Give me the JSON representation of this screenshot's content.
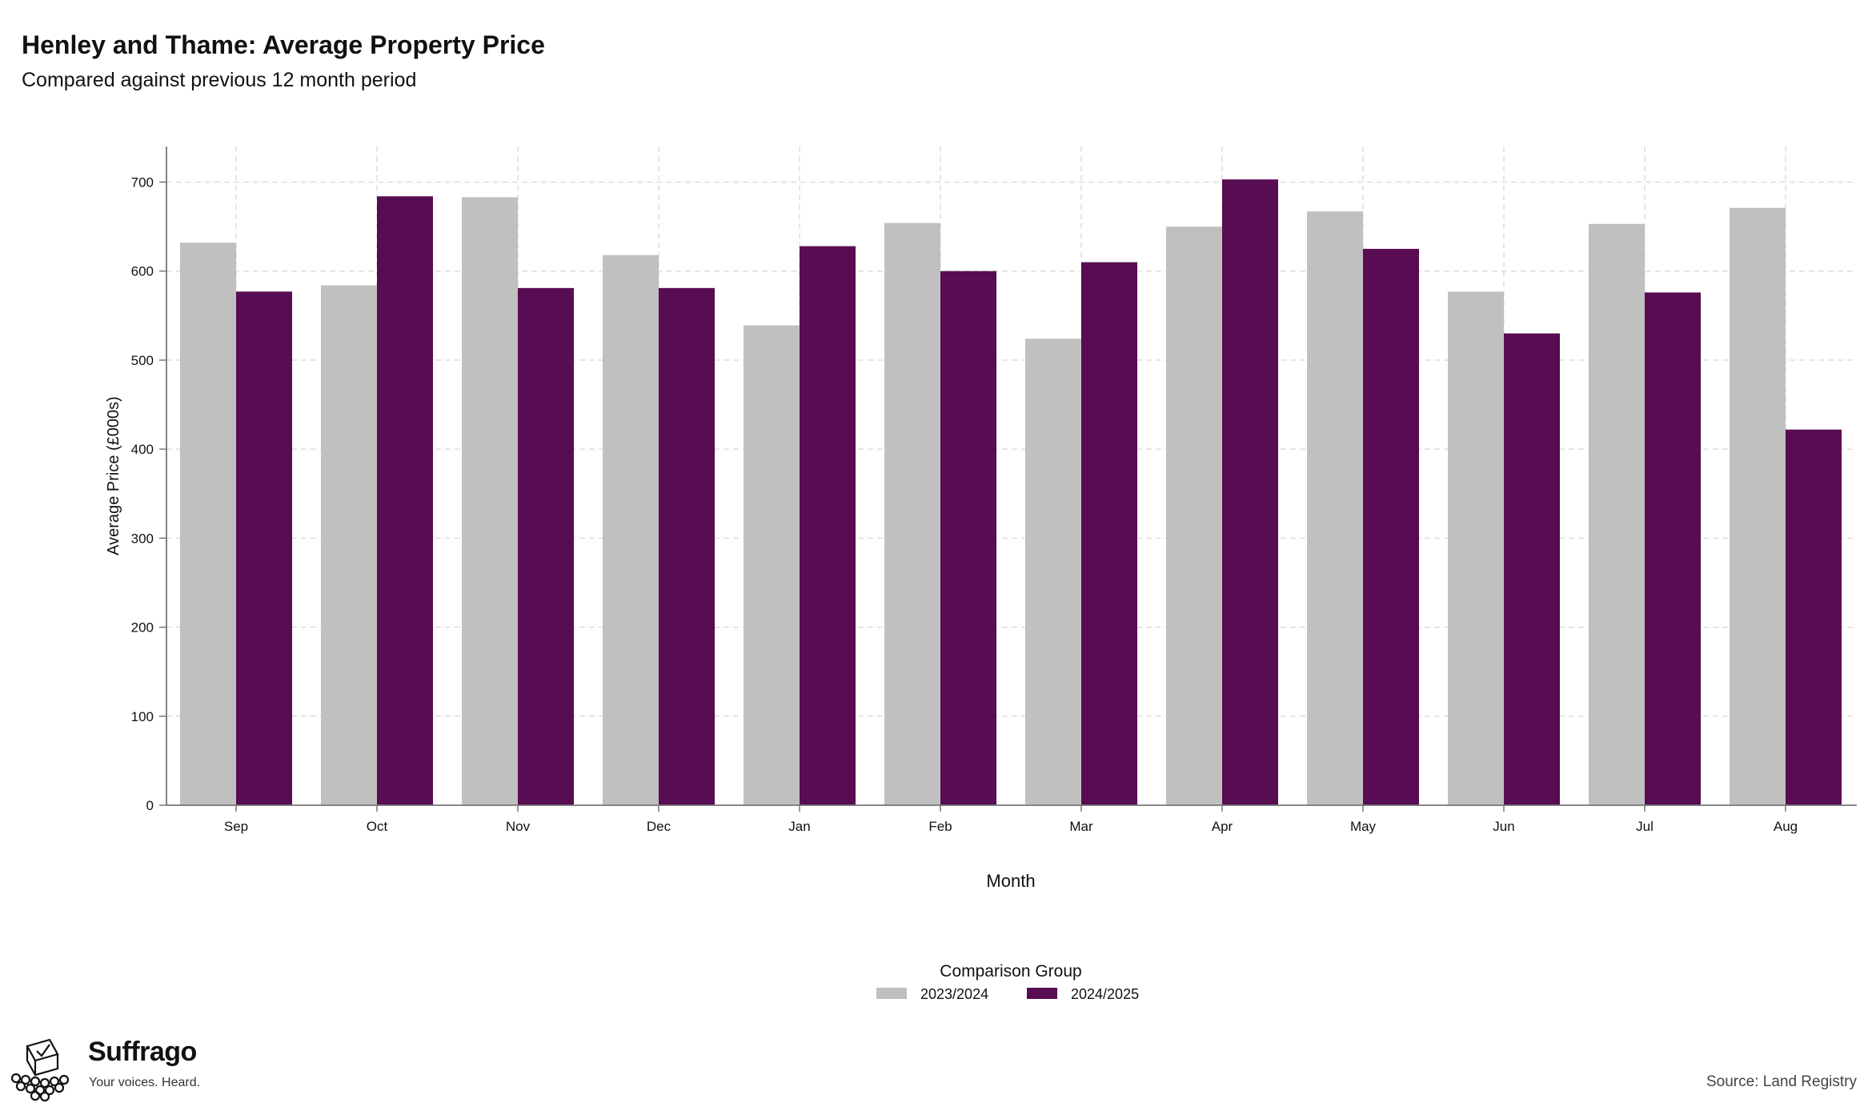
{
  "colors": {
    "series_2023_2024": "#c0c0c0",
    "series_2024_2025": "#580c52",
    "grid": "#dddddd",
    "axis": "#777777"
  },
  "chart_data": {
    "type": "bar",
    "title": "Henley and Thame: Average Property Price",
    "subtitle": "Compared against previous 12 month period",
    "xlabel": "Month",
    "ylabel": "Average Price (£000s)",
    "ylim": [
      0,
      740
    ],
    "yticks": [
      0,
      100,
      200,
      300,
      400,
      500,
      600,
      700
    ],
    "grid": true,
    "legend_position": "bottom-center",
    "legend_title": "Comparison Group",
    "categories": [
      "Sep",
      "Oct",
      "Nov",
      "Dec",
      "Jan",
      "Feb",
      "Mar",
      "Apr",
      "May",
      "Jun",
      "Jul",
      "Aug"
    ],
    "series": [
      {
        "name": "2023/2024",
        "color": "#c0c0c0",
        "values": [
          632,
          584,
          683,
          618,
          539,
          654,
          524,
          650,
          667,
          577,
          653,
          671
        ]
      },
      {
        "name": "2024/2025",
        "color": "#580c52",
        "values": [
          577,
          684,
          581,
          581,
          628,
          600,
          610,
          703,
          625,
          530,
          576,
          422
        ]
      }
    ]
  },
  "branding": {
    "name": "Suffrago",
    "tagline": "Your voices. Heard.",
    "logo_icon": "ballot-box-crowd-icon"
  },
  "source": "Source: Land Registry"
}
